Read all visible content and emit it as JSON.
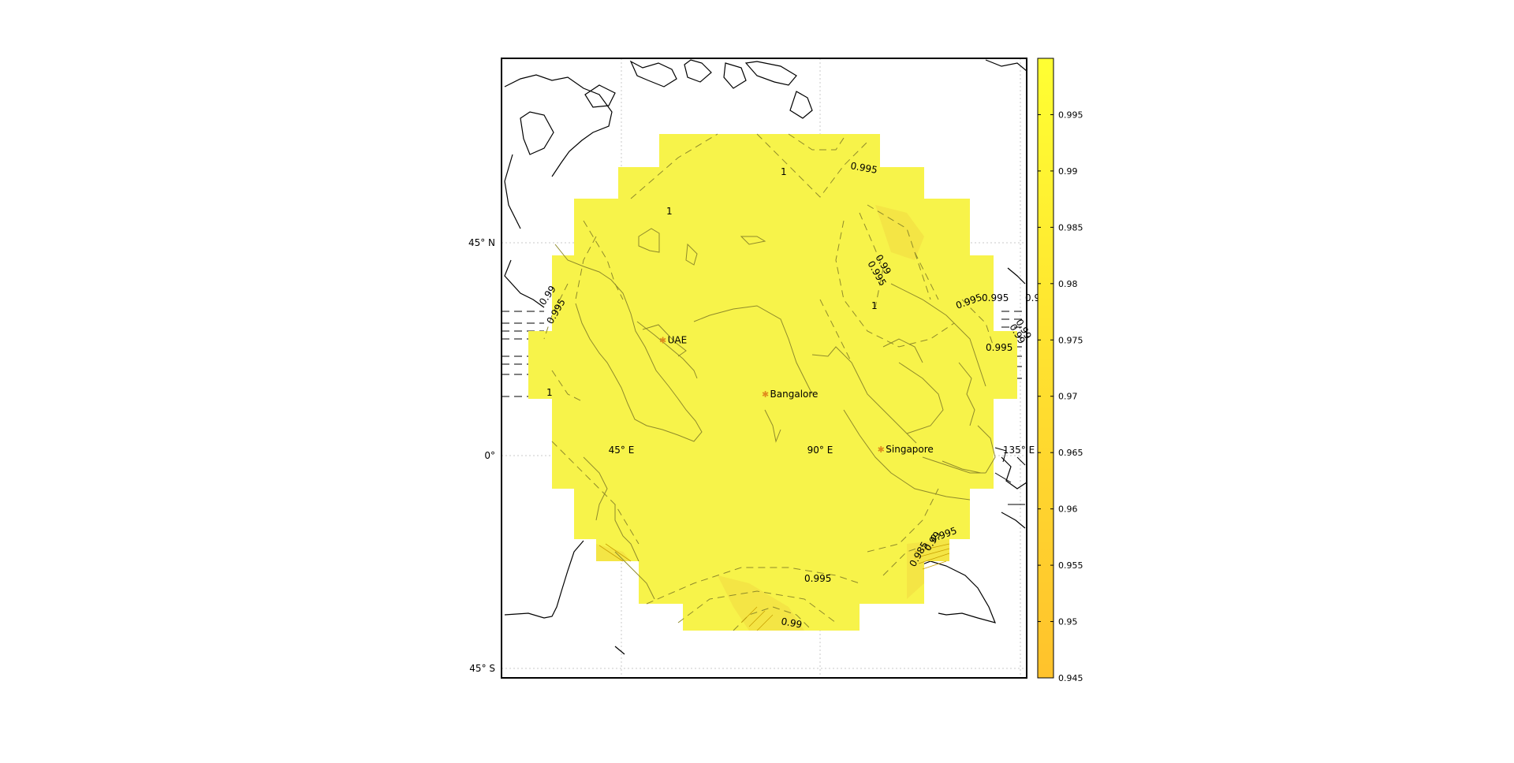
{
  "map": {
    "lat_ticks": [
      {
        "lat": 45,
        "label": "45° N"
      },
      {
        "lat": 0,
        "label": "0°"
      },
      {
        "lat": -45,
        "label": "45° S"
      }
    ],
    "lon_ticks": [
      {
        "lon": 45,
        "label": "45° E"
      },
      {
        "lon": 90,
        "label": "90° E"
      },
      {
        "lon": 135,
        "label": "135° E"
      }
    ],
    "grid": true,
    "field_color": "#f7f34a",
    "field_value_range": [
      0.995,
      1.0
    ],
    "stations": [
      {
        "name": "UAE",
        "lon": 54.4,
        "lat": 24.4
      },
      {
        "name": "Bangalore",
        "lon": 77.6,
        "lat": 13.0
      },
      {
        "name": "Singapore",
        "lon": 103.8,
        "lat": 1.3
      }
    ],
    "contour_labels": [
      "0.995",
      "1",
      "0.99",
      "0.995",
      "0.99",
      "1",
      "0.995",
      "0.99",
      "0.995",
      "0.995",
      "0.99",
      "0.995",
      "1",
      "1",
      "0.995",
      "0.99",
      "0.995",
      "0.985",
      "0.99",
      "0.995"
    ]
  },
  "colorbar": {
    "min": 0.945,
    "max": 1.0,
    "ticks": [
      "0.995",
      "0.99",
      "0.985",
      "0.98",
      "0.975",
      "0.97",
      "0.965",
      "0.96",
      "0.955",
      "0.95",
      "0.945"
    ],
    "color_high": "#ffff33",
    "color_low": "#ffc22c"
  }
}
